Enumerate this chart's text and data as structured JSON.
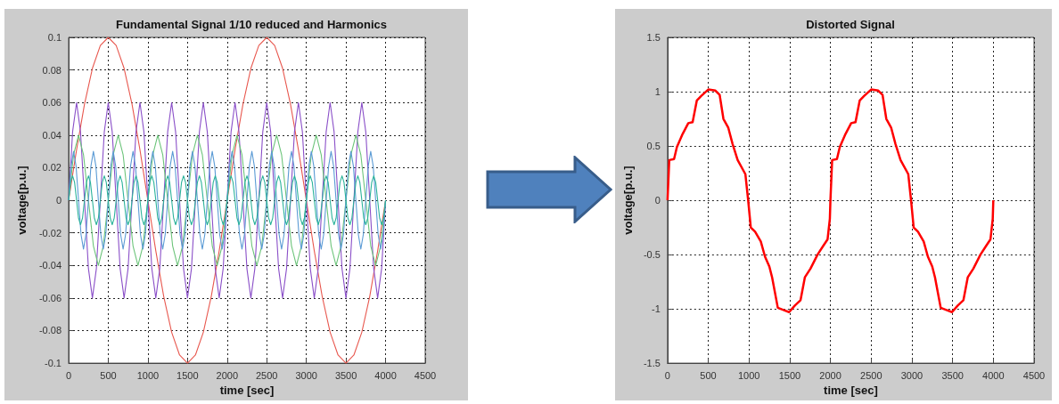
{
  "chart_data": [
    {
      "type": "line",
      "title": "Fundamental Signal 1/10 reduced and Harmonics",
      "xlabel": "time [sec]",
      "ylabel": "voltage[p.u.]",
      "xlim": [
        0,
        4500
      ],
      "xticks": [
        0,
        500,
        1000,
        1500,
        2000,
        2500,
        3000,
        3500,
        4000,
        4500
      ],
      "ylim": [
        -0.1,
        0.1
      ],
      "yticks": [
        -0.1,
        -0.08,
        -0.06,
        -0.04,
        -0.02,
        0,
        0.02,
        0.04,
        0.06,
        0.08,
        0.1
      ],
      "grid": true,
      "series": [
        {
          "color": "#e8584f",
          "x": [
            0,
            100,
            200,
            300,
            400,
            500,
            600,
            700,
            800,
            900,
            1000,
            1100,
            1200,
            1300,
            1400,
            1500,
            1600,
            1700,
            1800,
            1900,
            2000,
            2100,
            2200,
            2300,
            2400,
            2500,
            2600,
            2700,
            2800,
            2900,
            3000,
            3100,
            3200,
            3300,
            3400,
            3500,
            3600,
            3700,
            3800,
            3900,
            4000
          ],
          "values": [
            0,
            0.031,
            0.059,
            0.081,
            0.095,
            0.1,
            0.095,
            0.081,
            0.059,
            0.031,
            0,
            -0.031,
            -0.059,
            -0.081,
            -0.095,
            -0.1,
            -0.095,
            -0.081,
            -0.059,
            -0.031,
            0,
            0.031,
            0.059,
            0.081,
            0.095,
            0.1,
            0.095,
            0.081,
            0.059,
            0.031,
            0,
            -0.031,
            -0.059,
            -0.081,
            -0.095,
            -0.1,
            -0.095,
            -0.081,
            -0.059,
            -0.031,
            0
          ]
        },
        {
          "color": "#8a4fc8",
          "x": [
            0,
            50,
            100,
            150,
            200,
            250,
            300,
            350,
            400,
            450,
            500,
            550,
            600,
            650,
            700,
            750,
            800,
            850,
            900,
            950,
            1000,
            1050,
            1100,
            1150,
            1200,
            1250,
            1300,
            1350,
            1400,
            1450,
            1500,
            1550,
            1600,
            1650,
            1700,
            1750,
            1800,
            1850,
            1900,
            1950,
            2000,
            2050,
            2100,
            2150,
            2200,
            2250,
            2300,
            2350,
            2400,
            2450,
            2500,
            2550,
            2600,
            2650,
            2700,
            2750,
            2800,
            2850,
            2900,
            2950,
            3000,
            3050,
            3100,
            3150,
            3200,
            3250,
            3300,
            3350,
            3400,
            3450,
            3500,
            3550,
            3600,
            3650,
            3700,
            3750,
            3800,
            3850,
            3900,
            3950,
            4000
          ],
          "values": [
            0,
            0.042,
            0.06,
            0.042,
            0,
            -0.042,
            -0.06,
            -0.042,
            0,
            0.042,
            0.06,
            0.042,
            0,
            -0.042,
            -0.06,
            -0.042,
            0,
            0.042,
            0.06,
            0.042,
            0,
            -0.042,
            -0.06,
            -0.042,
            0,
            0.042,
            0.06,
            0.042,
            0,
            -0.042,
            -0.06,
            -0.042,
            0,
            0.042,
            0.06,
            0.042,
            0,
            -0.042,
            -0.06,
            -0.042,
            0,
            0.042,
            0.06,
            0.042,
            0,
            -0.042,
            -0.06,
            -0.042,
            0,
            0.042,
            0.06,
            0.042,
            0,
            -0.042,
            -0.06,
            -0.042,
            0,
            0.042,
            0.06,
            0.042,
            0,
            -0.042,
            -0.06,
            -0.042,
            0,
            0.042,
            0.06,
            0.042,
            0,
            -0.042,
            -0.06,
            -0.042,
            0,
            0.042,
            0.06,
            0.042,
            0,
            -0.042,
            -0.06,
            -0.042,
            0
          ]
        },
        {
          "color": "#6cc47a",
          "x": [
            0,
            62.5,
            125,
            187.5,
            250,
            312.5,
            375,
            437.5,
            500,
            562.5,
            625,
            687.5,
            750,
            812.5,
            875,
            937.5,
            1000,
            1062.5,
            1125,
            1187.5,
            1250,
            1312.5,
            1375,
            1437.5,
            1500,
            1562.5,
            1625,
            1687.5,
            1750,
            1812.5,
            1875,
            1937.5,
            2000,
            2062.5,
            2125,
            2187.5,
            2250,
            2312.5,
            2375,
            2437.5,
            2500,
            2562.5,
            2625,
            2687.5,
            2750,
            2812.5,
            2875,
            2937.5,
            3000,
            3062.5,
            3125,
            3187.5,
            3250,
            3312.5,
            3375,
            3437.5,
            3500,
            3562.5,
            3625,
            3687.5,
            3750,
            3812.5,
            3875,
            3937.5,
            4000
          ],
          "values": [
            0,
            0.028,
            0.04,
            0.028,
            0,
            -0.028,
            -0.04,
            -0.028,
            0,
            0.028,
            0.04,
            0.028,
            0,
            -0.028,
            -0.04,
            -0.028,
            0,
            0.028,
            0.04,
            0.028,
            0,
            -0.028,
            -0.04,
            -0.028,
            0,
            0.028,
            0.04,
            0.028,
            0,
            -0.028,
            -0.04,
            -0.028,
            0,
            0.028,
            0.04,
            0.028,
            0,
            -0.028,
            -0.04,
            -0.028,
            0,
            0.028,
            0.04,
            0.028,
            0,
            -0.028,
            -0.04,
            -0.028,
            0,
            0.028,
            0.04,
            0.028,
            0,
            -0.028,
            -0.04,
            -0.028,
            0,
            0.028,
            0.04,
            0.028,
            0,
            -0.028,
            -0.04,
            -0.028,
            0
          ]
        },
        {
          "color": "#5b9bd5",
          "x": [
            0,
            31.25,
            62.5,
            93.75,
            125,
            156.25,
            187.5,
            218.75,
            250,
            281.25,
            312.5,
            343.75,
            375,
            406.25,
            437.5,
            468.75,
            500,
            531.25,
            562.5,
            593.75,
            625,
            656.25,
            687.5,
            718.75,
            750,
            781.25,
            812.5,
            843.75,
            875,
            906.25,
            937.5,
            968.75,
            1000,
            1031.25,
            1062.5,
            1093.75,
            1125,
            1156.25,
            1187.5,
            1218.75,
            1250,
            1281.25,
            1312.5,
            1343.75,
            1375,
            1406.25,
            1437.5,
            1468.75,
            1500,
            1531.25,
            1562.5,
            1593.75,
            1625,
            1656.25,
            1687.5,
            1718.75,
            1750,
            1781.25,
            1812.5,
            1843.75,
            1875,
            1906.25,
            1937.5,
            1968.75,
            2000,
            2031.25,
            2062.5,
            2093.75,
            2125,
            2156.25,
            2187.5,
            2218.75,
            2250,
            2281.25,
            2312.5,
            2343.75,
            2375,
            2406.25,
            2437.5,
            2468.75,
            2500,
            2531.25,
            2562.5,
            2593.75,
            2625,
            2656.25,
            2687.5,
            2718.75,
            2750,
            2781.25,
            2812.5,
            2843.75,
            2875,
            2906.25,
            2937.5,
            2968.75,
            3000,
            3031.25,
            3062.5,
            3093.75,
            3125,
            3156.25,
            3187.5,
            3218.75,
            3250,
            3281.25,
            3312.5,
            3343.75,
            3375,
            3406.25,
            3437.5,
            3468.75,
            3500,
            3531.25,
            3562.5,
            3593.75,
            3625,
            3656.25,
            3687.5,
            3718.75,
            3750,
            3781.25,
            3812.5,
            3843.75,
            3875,
            3906.25,
            3937.5,
            3968.75,
            4000
          ],
          "values": [
            0,
            0.021,
            0.03,
            0.021,
            0,
            -0.021,
            -0.03,
            -0.021,
            0,
            0.021,
            0.03,
            0.021,
            0,
            -0.021,
            -0.03,
            -0.021,
            0,
            0.021,
            0.03,
            0.021,
            0,
            -0.021,
            -0.03,
            -0.021,
            0,
            0.021,
            0.03,
            0.021,
            0,
            -0.021,
            -0.03,
            -0.021,
            0,
            0.021,
            0.03,
            0.021,
            0,
            -0.021,
            -0.03,
            -0.021,
            0,
            0.021,
            0.03,
            0.021,
            0,
            -0.021,
            -0.03,
            -0.021,
            0,
            0.021,
            0.03,
            0.021,
            0,
            -0.021,
            -0.03,
            -0.021,
            0,
            0.021,
            0.03,
            0.021,
            0,
            -0.021,
            -0.03,
            -0.021,
            0,
            0.021,
            0.03,
            0.021,
            0,
            -0.021,
            -0.03,
            -0.021,
            0,
            0.021,
            0.03,
            0.021,
            0,
            -0.021,
            -0.03,
            -0.021,
            0,
            0.021,
            0.03,
            0.021,
            0,
            -0.021,
            -0.03,
            -0.021,
            0,
            0.021,
            0.03,
            0.021,
            0,
            -0.021,
            -0.03,
            -0.021,
            0,
            0.021,
            0.03,
            0.021,
            0,
            -0.021,
            -0.03,
            -0.021,
            0,
            0.021,
            0.03,
            0.021,
            0,
            -0.021,
            -0.03,
            -0.021,
            0,
            0.021,
            0.03,
            0.021,
            0,
            -0.021,
            -0.03,
            -0.021,
            0,
            0.021,
            0.03,
            0.021,
            0,
            -0.021,
            -0.03,
            -0.021,
            0
          ]
        },
        {
          "color": "#2bb39a",
          "x": [
            0,
            25,
            50,
            75,
            100,
            125,
            150,
            175,
            200,
            225,
            250,
            275,
            300,
            325,
            350,
            375,
            400,
            425,
            450,
            475,
            500,
            525,
            550,
            575,
            600,
            625,
            650,
            675,
            700,
            725,
            750,
            775,
            800,
            825,
            850,
            875,
            900,
            925,
            950,
            975,
            1000,
            1025,
            1050,
            1075,
            1100,
            1125,
            1150,
            1175,
            1200,
            1225,
            1250,
            1275,
            1300,
            1325,
            1350,
            1375,
            1400,
            1425,
            1450,
            1475,
            1500,
            1525,
            1550,
            1575,
            1600,
            1625,
            1650,
            1675,
            1700,
            1725,
            1750,
            1775,
            1800,
            1825,
            1850,
            1875,
            1900,
            1925,
            1950,
            1975,
            2000,
            2025,
            2050,
            2075,
            2100,
            2125,
            2150,
            2175,
            2200,
            2225,
            2250,
            2275,
            2300,
            2325,
            2350,
            2375,
            2400,
            2425,
            2450,
            2475,
            2500,
            2525,
            2550,
            2575,
            2600,
            2625,
            2650,
            2675,
            2700,
            2725,
            2750,
            2775,
            2800,
            2825,
            2850,
            2875,
            2900,
            2925,
            2950,
            2975,
            3000,
            3025,
            3050,
            3075,
            3100,
            3125,
            3150,
            3175,
            3200,
            3225,
            3250,
            3275,
            3300,
            3325,
            3350,
            3375,
            3400,
            3425,
            3450,
            3475,
            3500,
            3525,
            3550,
            3575,
            3600,
            3625,
            3650,
            3675,
            3700,
            3725,
            3750,
            3775,
            3800,
            3825,
            3850,
            3875,
            3900,
            3925,
            3950,
            3975,
            4000
          ],
          "values": [
            0,
            0.011,
            0.015,
            0.011,
            0,
            -0.011,
            -0.015,
            -0.011,
            0,
            0.011,
            0.015,
            0.011,
            0,
            -0.011,
            -0.015,
            -0.011,
            0,
            0.011,
            0.015,
            0.011,
            0,
            -0.011,
            -0.015,
            -0.011,
            0,
            0.011,
            0.015,
            0.011,
            0,
            -0.011,
            -0.015,
            -0.011,
            0,
            0.011,
            0.015,
            0.011,
            0,
            -0.011,
            -0.015,
            -0.011,
            0,
            0.011,
            0.015,
            0.011,
            0,
            -0.011,
            -0.015,
            -0.011,
            0,
            0.011,
            0.015,
            0.011,
            0,
            -0.011,
            -0.015,
            -0.011,
            0,
            0.011,
            0.015,
            0.011,
            0,
            -0.011,
            -0.015,
            -0.011,
            0,
            0.011,
            0.015,
            0.011,
            0,
            -0.011,
            -0.015,
            -0.011,
            0,
            0.011,
            0.015,
            0.011,
            0,
            -0.011,
            -0.015,
            -0.011,
            0,
            0.011,
            0.015,
            0.011,
            0,
            -0.011,
            -0.015,
            -0.011,
            0,
            0.011,
            0.015,
            0.011,
            0,
            -0.011,
            -0.015,
            -0.011,
            0,
            0.011,
            0.015,
            0.011,
            0,
            -0.011,
            -0.015,
            -0.011,
            0,
            0.011,
            0.015,
            0.011,
            0,
            -0.011,
            -0.015,
            -0.011,
            0,
            0.011,
            0.015,
            0.011,
            0,
            -0.011,
            -0.015,
            -0.011,
            0,
            0.011,
            0.015,
            0.011,
            0,
            -0.011,
            -0.015,
            -0.011,
            0,
            0.011,
            0.015,
            0.011,
            0,
            -0.011,
            -0.015,
            -0.011,
            0,
            0.011,
            0.015,
            0.011,
            0,
            -0.011,
            -0.015,
            -0.011,
            0,
            0.011,
            0.015,
            0.011,
            0,
            -0.011,
            -0.015,
            -0.011,
            0,
            0.011,
            0.015,
            0.011,
            0,
            -0.011,
            -0.015,
            -0.011,
            0
          ]
        }
      ]
    },
    {
      "type": "line",
      "title": "Distorted Signal",
      "xlabel": "time [sec]",
      "ylabel": "voltage[p.u.]",
      "xlim": [
        0,
        4500
      ],
      "xticks": [
        0,
        500,
        1000,
        1500,
        2000,
        2500,
        3000,
        3500,
        4000,
        4500
      ],
      "ylim": [
        -1.5,
        1.5
      ],
      "yticks": [
        -1.5,
        -1,
        -0.5,
        0,
        0.5,
        1,
        1.5
      ],
      "grid": true,
      "series": [
        {
          "color": "#ff0000",
          "x": [
            0,
            21,
            80,
            115,
            185,
            255,
            308,
            360,
            413,
            500,
            588,
            640,
            686,
            745,
            798,
            861,
            956,
            990,
            1022,
            1075,
            1145,
            1197,
            1250,
            1284,
            1354,
            1424,
            1493,
            1563,
            1633,
            1686,
            1755,
            1842,
            1912,
            1965,
            1993,
            2000,
            2021,
            2080,
            2115,
            2185,
            2255,
            2308,
            2360,
            2413,
            2500,
            2588,
            2640,
            2686,
            2745,
            2798,
            2861,
            2956,
            2990,
            3022,
            3075,
            3145,
            3197,
            3250,
            3284,
            3354,
            3424,
            3493,
            3563,
            3633,
            3686,
            3755,
            3842,
            3912,
            3965,
            3993,
            4000
          ],
          "values": [
            0,
            0.37,
            0.38,
            0.49,
            0.61,
            0.71,
            0.72,
            0.92,
            0.96,
            1.02,
            1.01,
            0.97,
            0.75,
            0.67,
            0.52,
            0.37,
            0.24,
            0,
            -0.25,
            -0.29,
            -0.38,
            -0.52,
            -0.61,
            -0.71,
            -0.99,
            -1.01,
            -1.03,
            -0.97,
            -0.92,
            -0.71,
            -0.63,
            -0.5,
            -0.42,
            -0.36,
            -0.17,
            0,
            0.37,
            0.38,
            0.49,
            0.61,
            0.71,
            0.72,
            0.92,
            0.96,
            1.02,
            1.01,
            0.97,
            0.75,
            0.67,
            0.52,
            0.37,
            0.24,
            0,
            -0.25,
            -0.29,
            -0.38,
            -0.52,
            -0.61,
            -0.71,
            -0.99,
            -1.01,
            -1.03,
            -0.97,
            -0.92,
            -0.71,
            -0.63,
            -0.5,
            -0.42,
            -0.36,
            -0.17,
            0
          ]
        }
      ]
    }
  ]
}
